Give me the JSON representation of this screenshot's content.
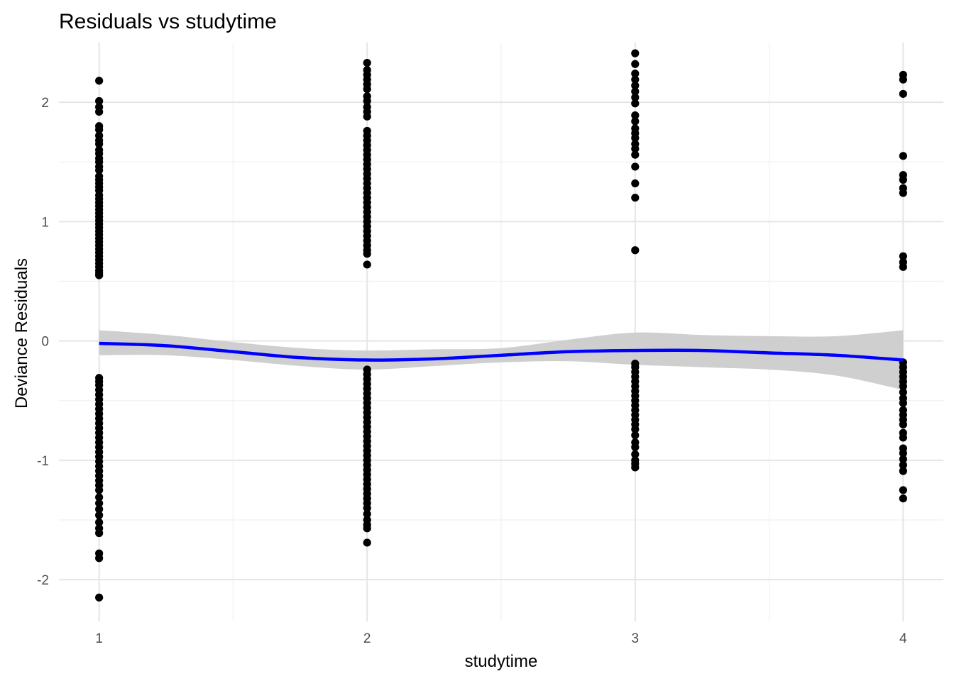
{
  "chart_data": {
    "type": "scatter",
    "title": "Residuals vs studytime",
    "xlabel": "studytime",
    "ylabel": "Deviance Residuals",
    "xlim": [
      0.85,
      4.15
    ],
    "ylim": [
      -2.35,
      2.5
    ],
    "x_ticks": [
      1,
      2,
      3,
      4
    ],
    "x_tick_labels": [
      "1",
      "2",
      "3",
      "4"
    ],
    "y_ticks": [
      -2,
      -1,
      0,
      1,
      2
    ],
    "y_tick_labels": [
      "-2",
      "-1",
      "0",
      "1",
      "2"
    ],
    "grid": true,
    "colors": {
      "points": "#000000",
      "smooth_line": "#0000ff",
      "ribbon": "#cccccc"
    },
    "points": [
      {
        "x": 1,
        "y": [
          2.18,
          2.01,
          1.96,
          1.92,
          1.8,
          1.77,
          1.72,
          1.68,
          1.65,
          1.6,
          1.57,
          1.53,
          1.5,
          1.46,
          1.43,
          1.38,
          1.35,
          1.32,
          1.29,
          1.26,
          1.22,
          1.19,
          1.16,
          1.13,
          1.1,
          1.07,
          1.04,
          1.01,
          0.98,
          0.95,
          0.92,
          0.89,
          0.86,
          0.83,
          0.8,
          0.77,
          0.74,
          0.71,
          0.68,
          0.65,
          0.62,
          0.59,
          0.57,
          0.55,
          -0.31,
          -0.34,
          -0.37,
          -0.41,
          -0.45,
          -0.49,
          -0.53,
          -0.57,
          -0.61,
          -0.65,
          -0.69,
          -0.73,
          -0.77,
          -0.81,
          -0.85,
          -0.89,
          -0.93,
          -0.97,
          -1.01,
          -1.05,
          -1.09,
          -1.13,
          -1.17,
          -1.21,
          -1.25,
          -1.31,
          -1.36,
          -1.41,
          -1.46,
          -1.52,
          -1.57,
          -1.61,
          -1.78,
          -1.82,
          -2.15
        ]
      },
      {
        "x": 2,
        "y": [
          2.33,
          2.27,
          2.23,
          2.19,
          2.15,
          2.11,
          2.05,
          2.01,
          1.96,
          1.92,
          1.88,
          1.76,
          1.72,
          1.68,
          1.64,
          1.6,
          1.56,
          1.52,
          1.48,
          1.44,
          1.4,
          1.36,
          1.32,
          1.28,
          1.24,
          1.2,
          1.16,
          1.12,
          1.08,
          1.04,
          1.0,
          0.96,
          0.92,
          0.88,
          0.84,
          0.8,
          0.76,
          0.73,
          0.64,
          -0.24,
          -0.28,
          -0.32,
          -0.36,
          -0.4,
          -0.44,
          -0.48,
          -0.52,
          -0.56,
          -0.6,
          -0.64,
          -0.68,
          -0.72,
          -0.76,
          -0.8,
          -0.84,
          -0.88,
          -0.92,
          -0.96,
          -1.0,
          -1.04,
          -1.08,
          -1.12,
          -1.16,
          -1.2,
          -1.24,
          -1.28,
          -1.32,
          -1.36,
          -1.4,
          -1.45,
          -1.5,
          -1.54,
          -1.57,
          -1.69
        ]
      },
      {
        "x": 3,
        "y": [
          2.41,
          2.32,
          2.24,
          2.19,
          2.14,
          2.09,
          2.04,
          1.99,
          1.89,
          1.84,
          1.78,
          1.74,
          1.7,
          1.65,
          1.61,
          1.56,
          1.46,
          1.32,
          1.2,
          0.76,
          -0.19,
          -0.22,
          -0.26,
          -0.3,
          -0.34,
          -0.38,
          -0.42,
          -0.46,
          -0.5,
          -0.54,
          -0.58,
          -0.62,
          -0.66,
          -0.7,
          -0.74,
          -0.79,
          -0.85,
          -0.89,
          -0.95,
          -1.0,
          -1.03,
          -1.06
        ]
      },
      {
        "x": 4,
        "y": [
          2.23,
          2.19,
          2.07,
          1.55,
          1.39,
          1.35,
          1.28,
          1.24,
          0.71,
          0.66,
          0.62,
          -0.18,
          -0.22,
          -0.26,
          -0.3,
          -0.34,
          -0.38,
          -0.43,
          -0.48,
          -0.52,
          -0.58,
          -0.62,
          -0.66,
          -0.7,
          -0.77,
          -0.81,
          -0.9,
          -0.94,
          -0.99,
          -1.04,
          -1.09,
          -1.25,
          -1.32
        ]
      }
    ],
    "smooth": {
      "x": [
        1,
        1.25,
        1.5,
        1.75,
        2,
        2.25,
        2.5,
        2.75,
        3,
        3.25,
        3.5,
        3.75,
        4
      ],
      "y": [
        -0.02,
        -0.04,
        -0.09,
        -0.14,
        -0.16,
        -0.15,
        -0.12,
        -0.09,
        -0.08,
        -0.08,
        -0.1,
        -0.12,
        -0.16
      ],
      "lower": [
        -0.12,
        -0.12,
        -0.16,
        -0.21,
        -0.24,
        -0.21,
        -0.18,
        -0.17,
        -0.2,
        -0.22,
        -0.24,
        -0.29,
        -0.41
      ],
      "upper": [
        0.09,
        0.05,
        -0.01,
        -0.06,
        -0.08,
        -0.07,
        -0.06,
        0.01,
        0.07,
        0.05,
        0.04,
        0.04,
        0.09
      ]
    }
  }
}
